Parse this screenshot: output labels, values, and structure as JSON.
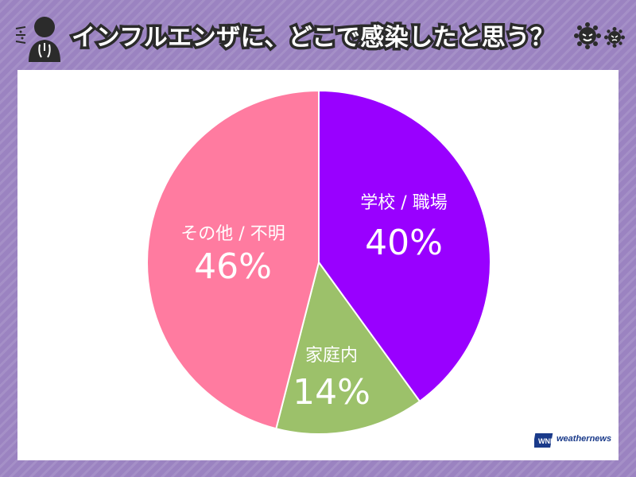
{
  "header": {
    "title": "インフルエンザに、どこで感染したと思う？"
  },
  "chart_data": {
    "type": "pie",
    "title": "インフルエンザに、どこで感染したと思う？",
    "start_angle": "top",
    "direction": "clockwise",
    "slices": [
      {
        "label": "学校 / 職場",
        "value": 40,
        "display": "40%",
        "color": "#9900ff"
      },
      {
        "label": "家庭内",
        "value": 14,
        "display": "14%",
        "color": "#9cc16a"
      },
      {
        "label": "その他 / 不明",
        "value": 46,
        "display": "46%",
        "color": "#ff7ba0"
      }
    ]
  },
  "logo": {
    "mark": "WNI",
    "text": "weathernews"
  },
  "colors": {
    "background": "#9b83c1",
    "panel": "#ffffff",
    "title_outline": "#2b2b2b"
  }
}
